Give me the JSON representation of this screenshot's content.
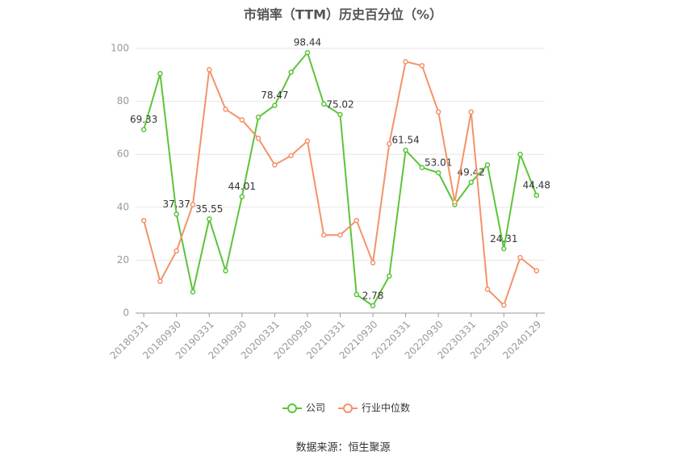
{
  "chart_data": {
    "type": "line",
    "title": "市销率（TTM）历史百分位（%）",
    "source": "数据来源：恒生聚源",
    "categories": [
      "20180331",
      null,
      "20180930",
      null,
      "20190331",
      null,
      "20190930",
      null,
      "20200331",
      null,
      "20200930",
      null,
      "20210331",
      null,
      "20210930",
      null,
      "20220331",
      null,
      "20220930",
      null,
      "20230331",
      null,
      "20230930",
      null,
      "20240129"
    ],
    "series": [
      {
        "name": "公司",
        "color": "#5cc43a",
        "values": [
          69.33,
          90.5,
          37.37,
          8,
          35.55,
          16,
          44.01,
          74,
          78.47,
          91,
          98.44,
          79,
          75.02,
          7,
          2.78,
          14,
          61.54,
          55,
          53.01,
          41,
          49.42,
          56,
          24.31,
          60,
          44.48
        ],
        "show_labels": [
          true,
          false,
          true,
          false,
          true,
          false,
          true,
          false,
          true,
          false,
          true,
          false,
          true,
          false,
          true,
          false,
          true,
          false,
          true,
          false,
          true,
          false,
          true,
          false,
          true
        ]
      },
      {
        "name": "行业中位数",
        "color": "#f4926a",
        "values": [
          35,
          12,
          23.5,
          41,
          92,
          77,
          73,
          66,
          56,
          59.5,
          65,
          29.5,
          29.5,
          35,
          19,
          64,
          95,
          93.5,
          76,
          42,
          76,
          9,
          3,
          21,
          16
        ]
      }
    ],
    "ylim": [
      0,
      100
    ],
    "yticks": [
      0,
      20,
      40,
      60,
      80,
      100
    ],
    "grid": true,
    "legend": "bottom"
  }
}
